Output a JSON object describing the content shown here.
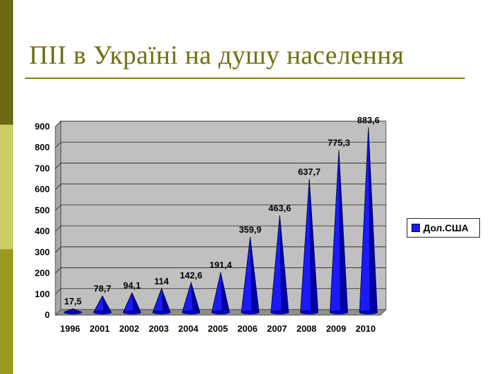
{
  "slide": {
    "title": "ПІІ в Україні на душу населення"
  },
  "chart_data": {
    "type": "bar",
    "categories": [
      "1996",
      "2001",
      "2002",
      "2003",
      "2004",
      "2005",
      "2006",
      "2007",
      "2008",
      "2009",
      "2010"
    ],
    "series": [
      {
        "name": "Дол.США",
        "values": [
          17.5,
          78.7,
          94.1,
          114,
          142.6,
          191.4,
          359.9,
          463.6,
          637.7,
          775.3,
          883.6
        ],
        "labels": [
          "17,5",
          "78,7",
          "94,1",
          "114",
          "142,6",
          "191,4",
          "359,9",
          "463,6",
          "637,7",
          "775,3",
          "883,6"
        ]
      }
    ],
    "yticks": [
      "0",
      "100",
      "200",
      "300",
      "400",
      "500",
      "600",
      "700",
      "800",
      "900"
    ],
    "ylim": [
      0,
      900
    ],
    "grid": true,
    "legend_position": "right",
    "bar_shape": "cone",
    "bar_color": "#1a1aff",
    "plot_background": "#c0c0c0"
  }
}
